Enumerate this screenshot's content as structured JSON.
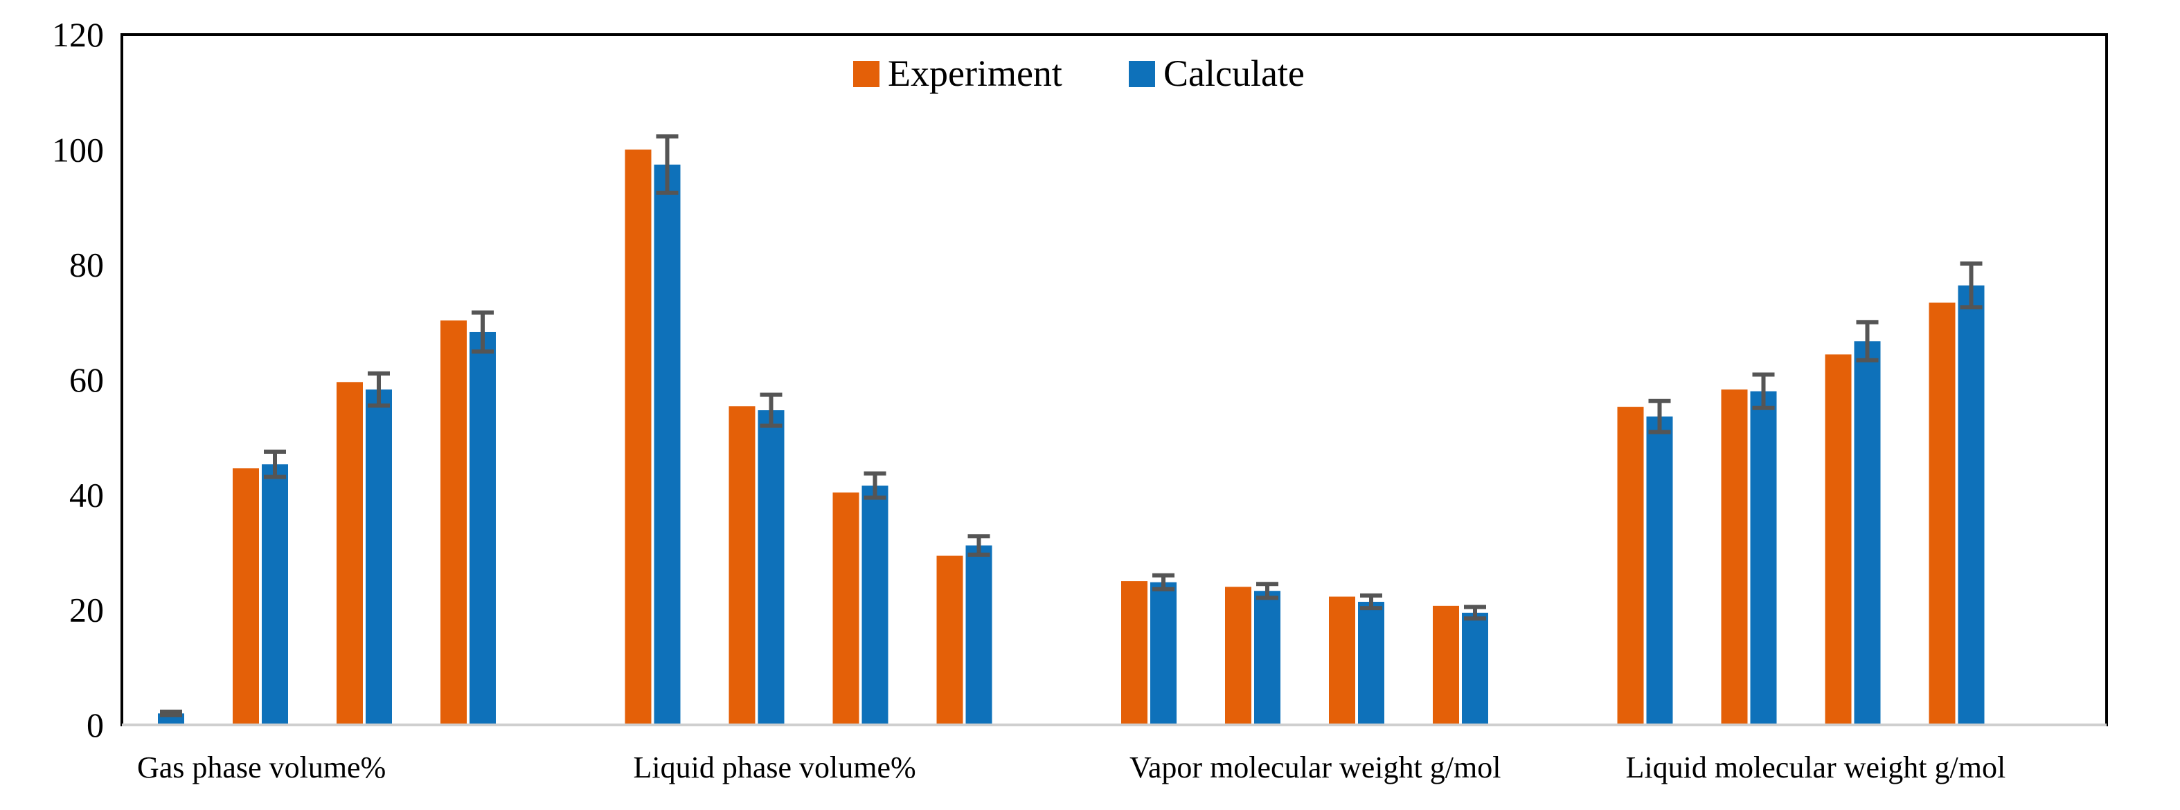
{
  "chart_data": {
    "type": "bar",
    "title": "",
    "xlabel": "",
    "ylabel": "",
    "ylim": [
      0,
      120
    ],
    "yticks": [
      0,
      20,
      40,
      60,
      80,
      100,
      120
    ],
    "grid": false,
    "legend_position": "top-center",
    "groups": [
      "Gas phase volume%",
      "Liquid phase volume%",
      "Vapor molecular weight g/mol",
      "Liquid molecular weight g/mol"
    ],
    "series": [
      {
        "name": "Experiment",
        "color": "#E46008",
        "values": [
          [
            0,
            44.6,
            59.6,
            70.3
          ],
          [
            100,
            55.4,
            40.4,
            29.4
          ],
          [
            25.0,
            24.0,
            22.3,
            20.7
          ],
          [
            55.3,
            58.3,
            64.4,
            73.4
          ]
        ]
      },
      {
        "name": "Calculate",
        "color": "#0E71BA",
        "values": [
          [
            2.0,
            45.3,
            58.3,
            68.3
          ],
          [
            97.4,
            54.7,
            41.6,
            31.2
          ],
          [
            24.8,
            23.3,
            21.4,
            19.5
          ],
          [
            53.6,
            58.0,
            66.7,
            76.4
          ]
        ],
        "error": [
          [
            0.3,
            2.2,
            2.8,
            3.4
          ],
          [
            4.9,
            2.7,
            2.1,
            1.6
          ],
          [
            1.2,
            1.2,
            1.1,
            1.0
          ],
          [
            2.7,
            2.9,
            3.3,
            3.8
          ]
        ]
      }
    ]
  }
}
